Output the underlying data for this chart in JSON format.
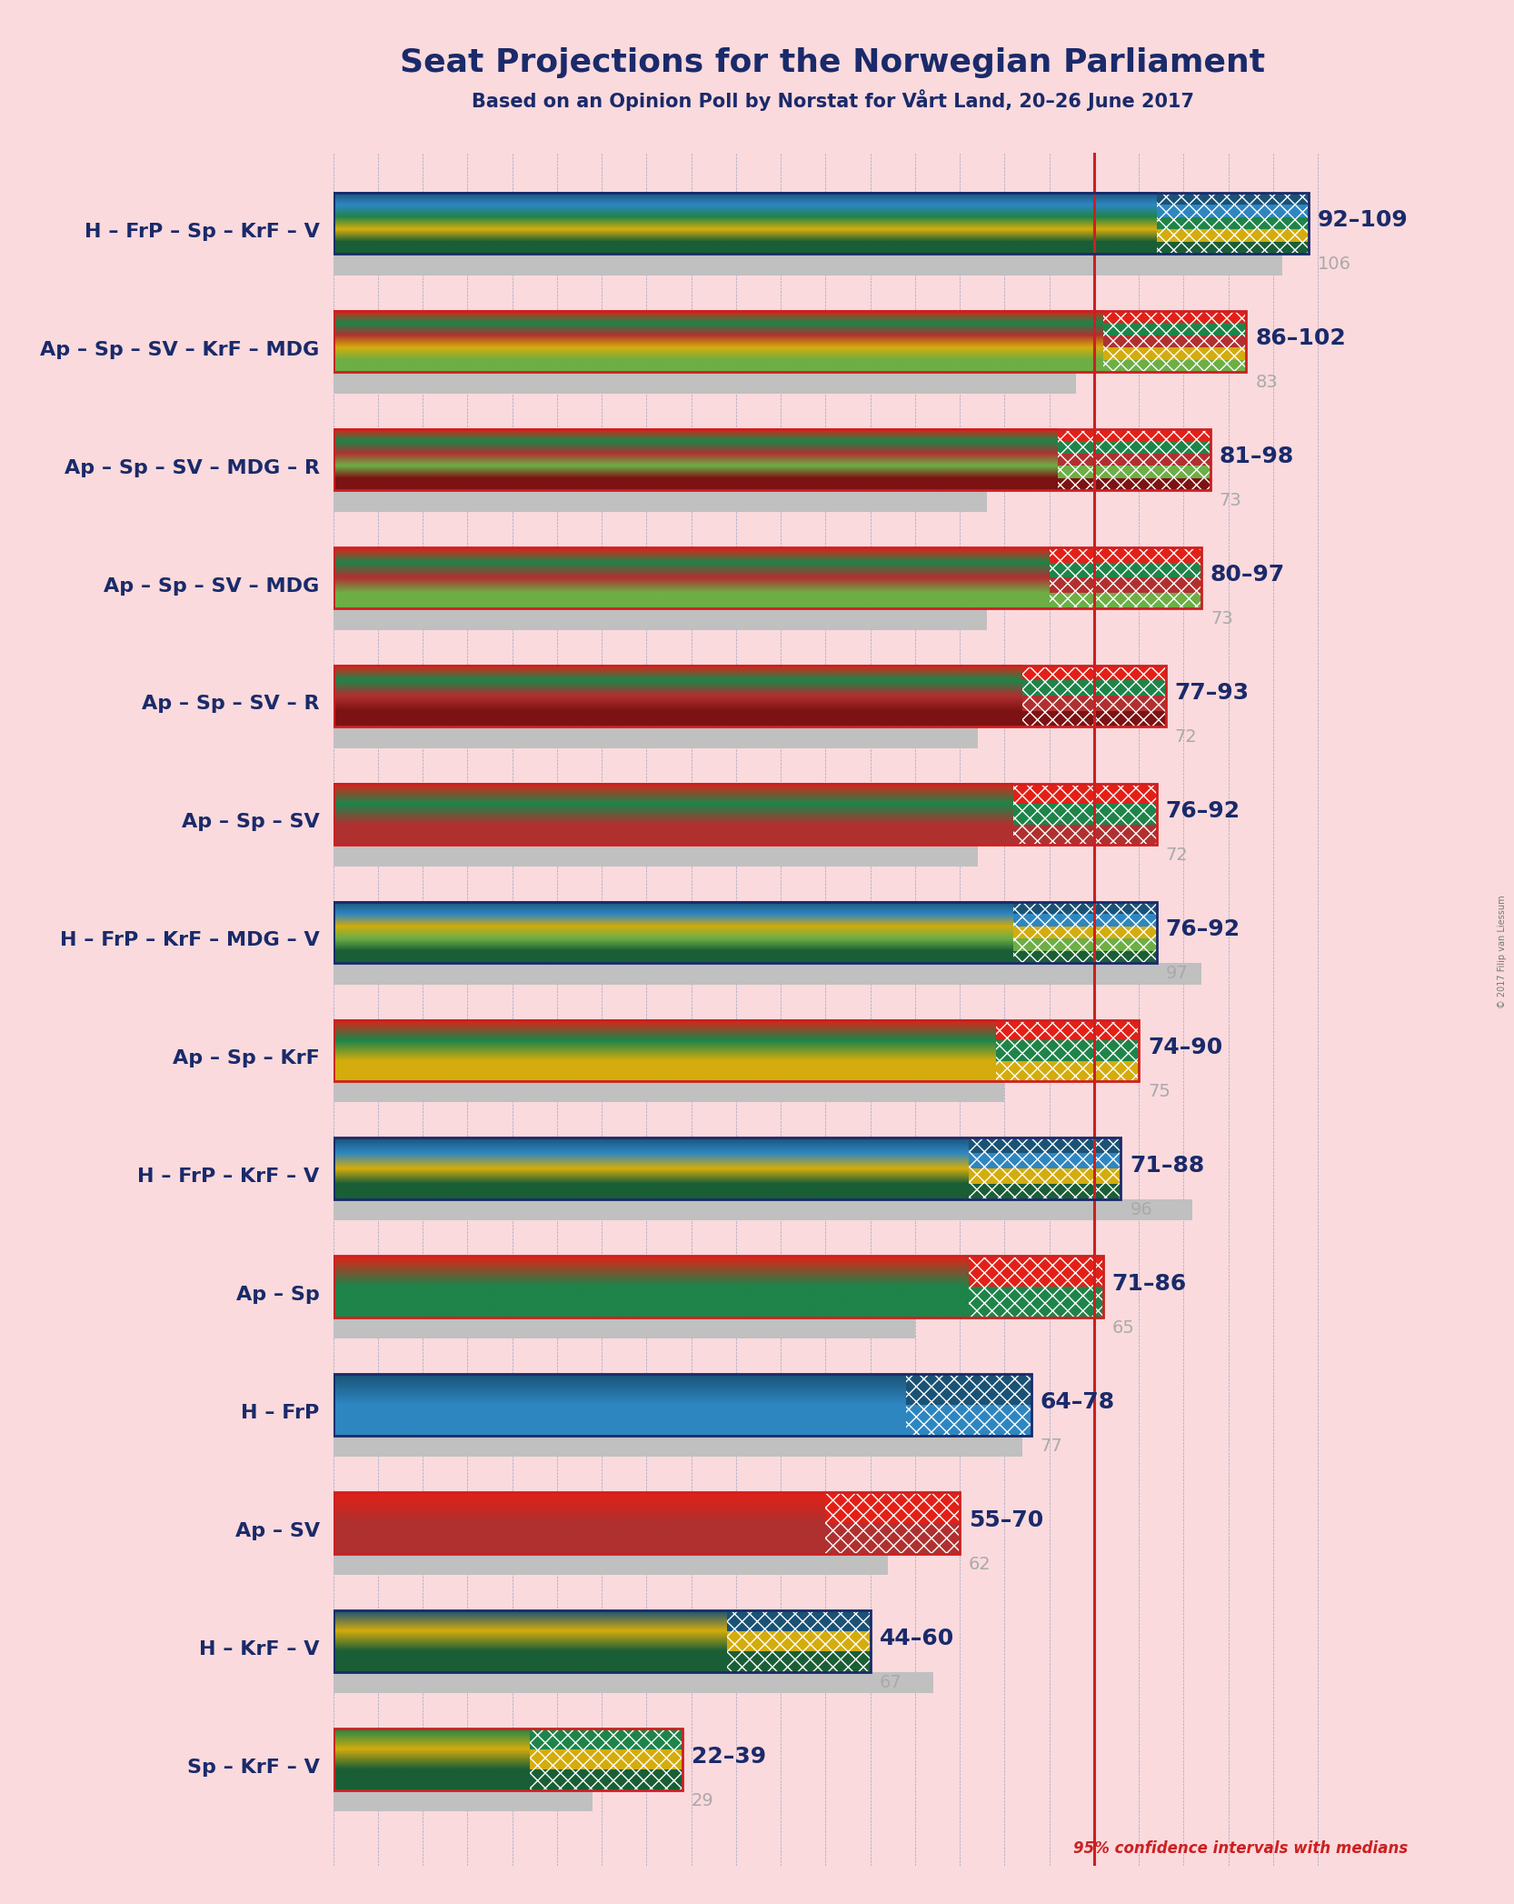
{
  "title": "Seat Projections for the Norwegian Parliament",
  "subtitle": "Based on an Opinion Poll by Norstat for Vårt Land, 20–26 June 2017",
  "copyright": "© 2017 Filip van Liessum",
  "background_color": "#FADADD",
  "majority_line": 85,
  "note": "95% confidence intervals with medians",
  "coalitions": [
    {
      "label": "H – FrP – Sp – KrF – V",
      "low": 92,
      "high": 109,
      "median": 106,
      "range_label": "92–109",
      "type": "right",
      "parties": [
        "H",
        "FrP",
        "Sp",
        "KrF",
        "V"
      ]
    },
    {
      "label": "Ap – Sp – SV – KrF – MDG",
      "low": 86,
      "high": 102,
      "median": 83,
      "range_label": "86–102",
      "type": "left",
      "parties": [
        "Ap",
        "Sp",
        "SV",
        "KrF",
        "MDG"
      ]
    },
    {
      "label": "Ap – Sp – SV – MDG – R",
      "low": 81,
      "high": 98,
      "median": 73,
      "range_label": "81–98",
      "type": "left",
      "parties": [
        "Ap",
        "Sp",
        "SV",
        "MDG",
        "R"
      ]
    },
    {
      "label": "Ap – Sp – SV – MDG",
      "low": 80,
      "high": 97,
      "median": 73,
      "range_label": "80–97",
      "type": "left",
      "parties": [
        "Ap",
        "Sp",
        "SV",
        "MDG"
      ]
    },
    {
      "label": "Ap – Sp – SV – R",
      "low": 77,
      "high": 93,
      "median": 72,
      "range_label": "77–93",
      "type": "left",
      "parties": [
        "Ap",
        "Sp",
        "SV",
        "R"
      ]
    },
    {
      "label": "Ap – Sp – SV",
      "low": 76,
      "high": 92,
      "median": 72,
      "range_label": "76–92",
      "type": "left",
      "parties": [
        "Ap",
        "Sp",
        "SV"
      ]
    },
    {
      "label": "H – FrP – KrF – MDG – V",
      "low": 76,
      "high": 92,
      "median": 97,
      "range_label": "76–92",
      "type": "right",
      "parties": [
        "H",
        "FrP",
        "KrF",
        "MDG",
        "V"
      ]
    },
    {
      "label": "Ap – Sp – KrF",
      "low": 74,
      "high": 90,
      "median": 75,
      "range_label": "74–90",
      "type": "left",
      "parties": [
        "Ap",
        "Sp",
        "KrF"
      ]
    },
    {
      "label": "H – FrP – KrF – V",
      "low": 71,
      "high": 88,
      "median": 96,
      "range_label": "71–88",
      "type": "right",
      "parties": [
        "H",
        "FrP",
        "KrF",
        "V"
      ]
    },
    {
      "label": "Ap – Sp",
      "low": 71,
      "high": 86,
      "median": 65,
      "range_label": "71–86",
      "type": "left",
      "parties": [
        "Ap",
        "Sp"
      ]
    },
    {
      "label": "H – FrP",
      "low": 64,
      "high": 78,
      "median": 77,
      "range_label": "64–78",
      "type": "right",
      "parties": [
        "H",
        "FrP"
      ]
    },
    {
      "label": "Ap – SV",
      "low": 55,
      "high": 70,
      "median": 62,
      "range_label": "55–70",
      "type": "left",
      "parties": [
        "Ap",
        "SV"
      ]
    },
    {
      "label": "H – KrF – V",
      "low": 44,
      "high": 60,
      "median": 67,
      "range_label": "44–60",
      "type": "right",
      "parties": [
        "H",
        "KrF",
        "V"
      ]
    },
    {
      "label": "Sp – KrF – V",
      "low": 22,
      "high": 39,
      "median": 29,
      "range_label": "22–39",
      "type": "left",
      "parties": [
        "Sp",
        "KrF",
        "V"
      ]
    }
  ],
  "party_colors": {
    "H": "#1a5276",
    "FrP": "#2e86c1",
    "Sp": "#1e8449",
    "KrF": "#d4ac0d",
    "V": "#1a5e36",
    "MDG": "#6dae45",
    "Ap": "#e32017",
    "SV": "#b03030",
    "R": "#7d1213"
  },
  "label_color": "#1a2a6a",
  "median_color": "#aaaaaa",
  "gray_bar_color": "#c0c0c0",
  "majority_color": "#cc2020",
  "grid_color": "#5577aa",
  "range_fontsize": 18,
  "median_fontsize": 14,
  "label_fontsize": 16,
  "title_fontsize": 26,
  "subtitle_fontsize": 15
}
